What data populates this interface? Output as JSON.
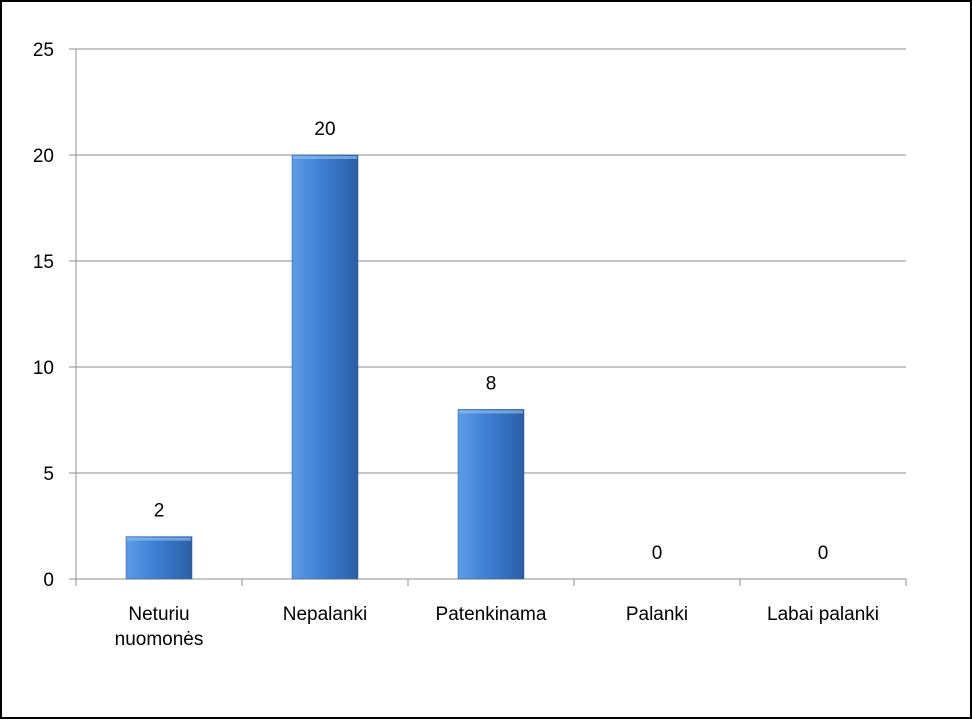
{
  "colors": {
    "bar_light": "#5b9be6",
    "bar_mid": "#3f7fd3",
    "bar_dark": "#2a5fa6",
    "gridline": "#8c8c8c",
    "axis": "#8c8c8c",
    "text": "#000000",
    "frame": "#000000"
  },
  "chart_data": {
    "type": "bar",
    "categories": [
      "Neturiu nuomonės",
      "Nepalanki",
      "Patenkinama",
      "Palanki",
      "Labai palanki"
    ],
    "category_lines": [
      [
        "Neturiu",
        "nuomonės"
      ],
      [
        "Nepalanki"
      ],
      [
        "Patenkinama"
      ],
      [
        "Palanki"
      ],
      [
        "Labai palanki"
      ]
    ],
    "values": [
      2,
      20,
      8,
      0,
      0
    ],
    "data_labels": [
      "2",
      "20",
      "8",
      "0",
      "0"
    ],
    "title": "",
    "xlabel": "",
    "ylabel": "",
    "ylim": [
      0,
      25
    ],
    "yticks": [
      0,
      5,
      10,
      15,
      20,
      25
    ],
    "grid": true,
    "legend": "none"
  }
}
